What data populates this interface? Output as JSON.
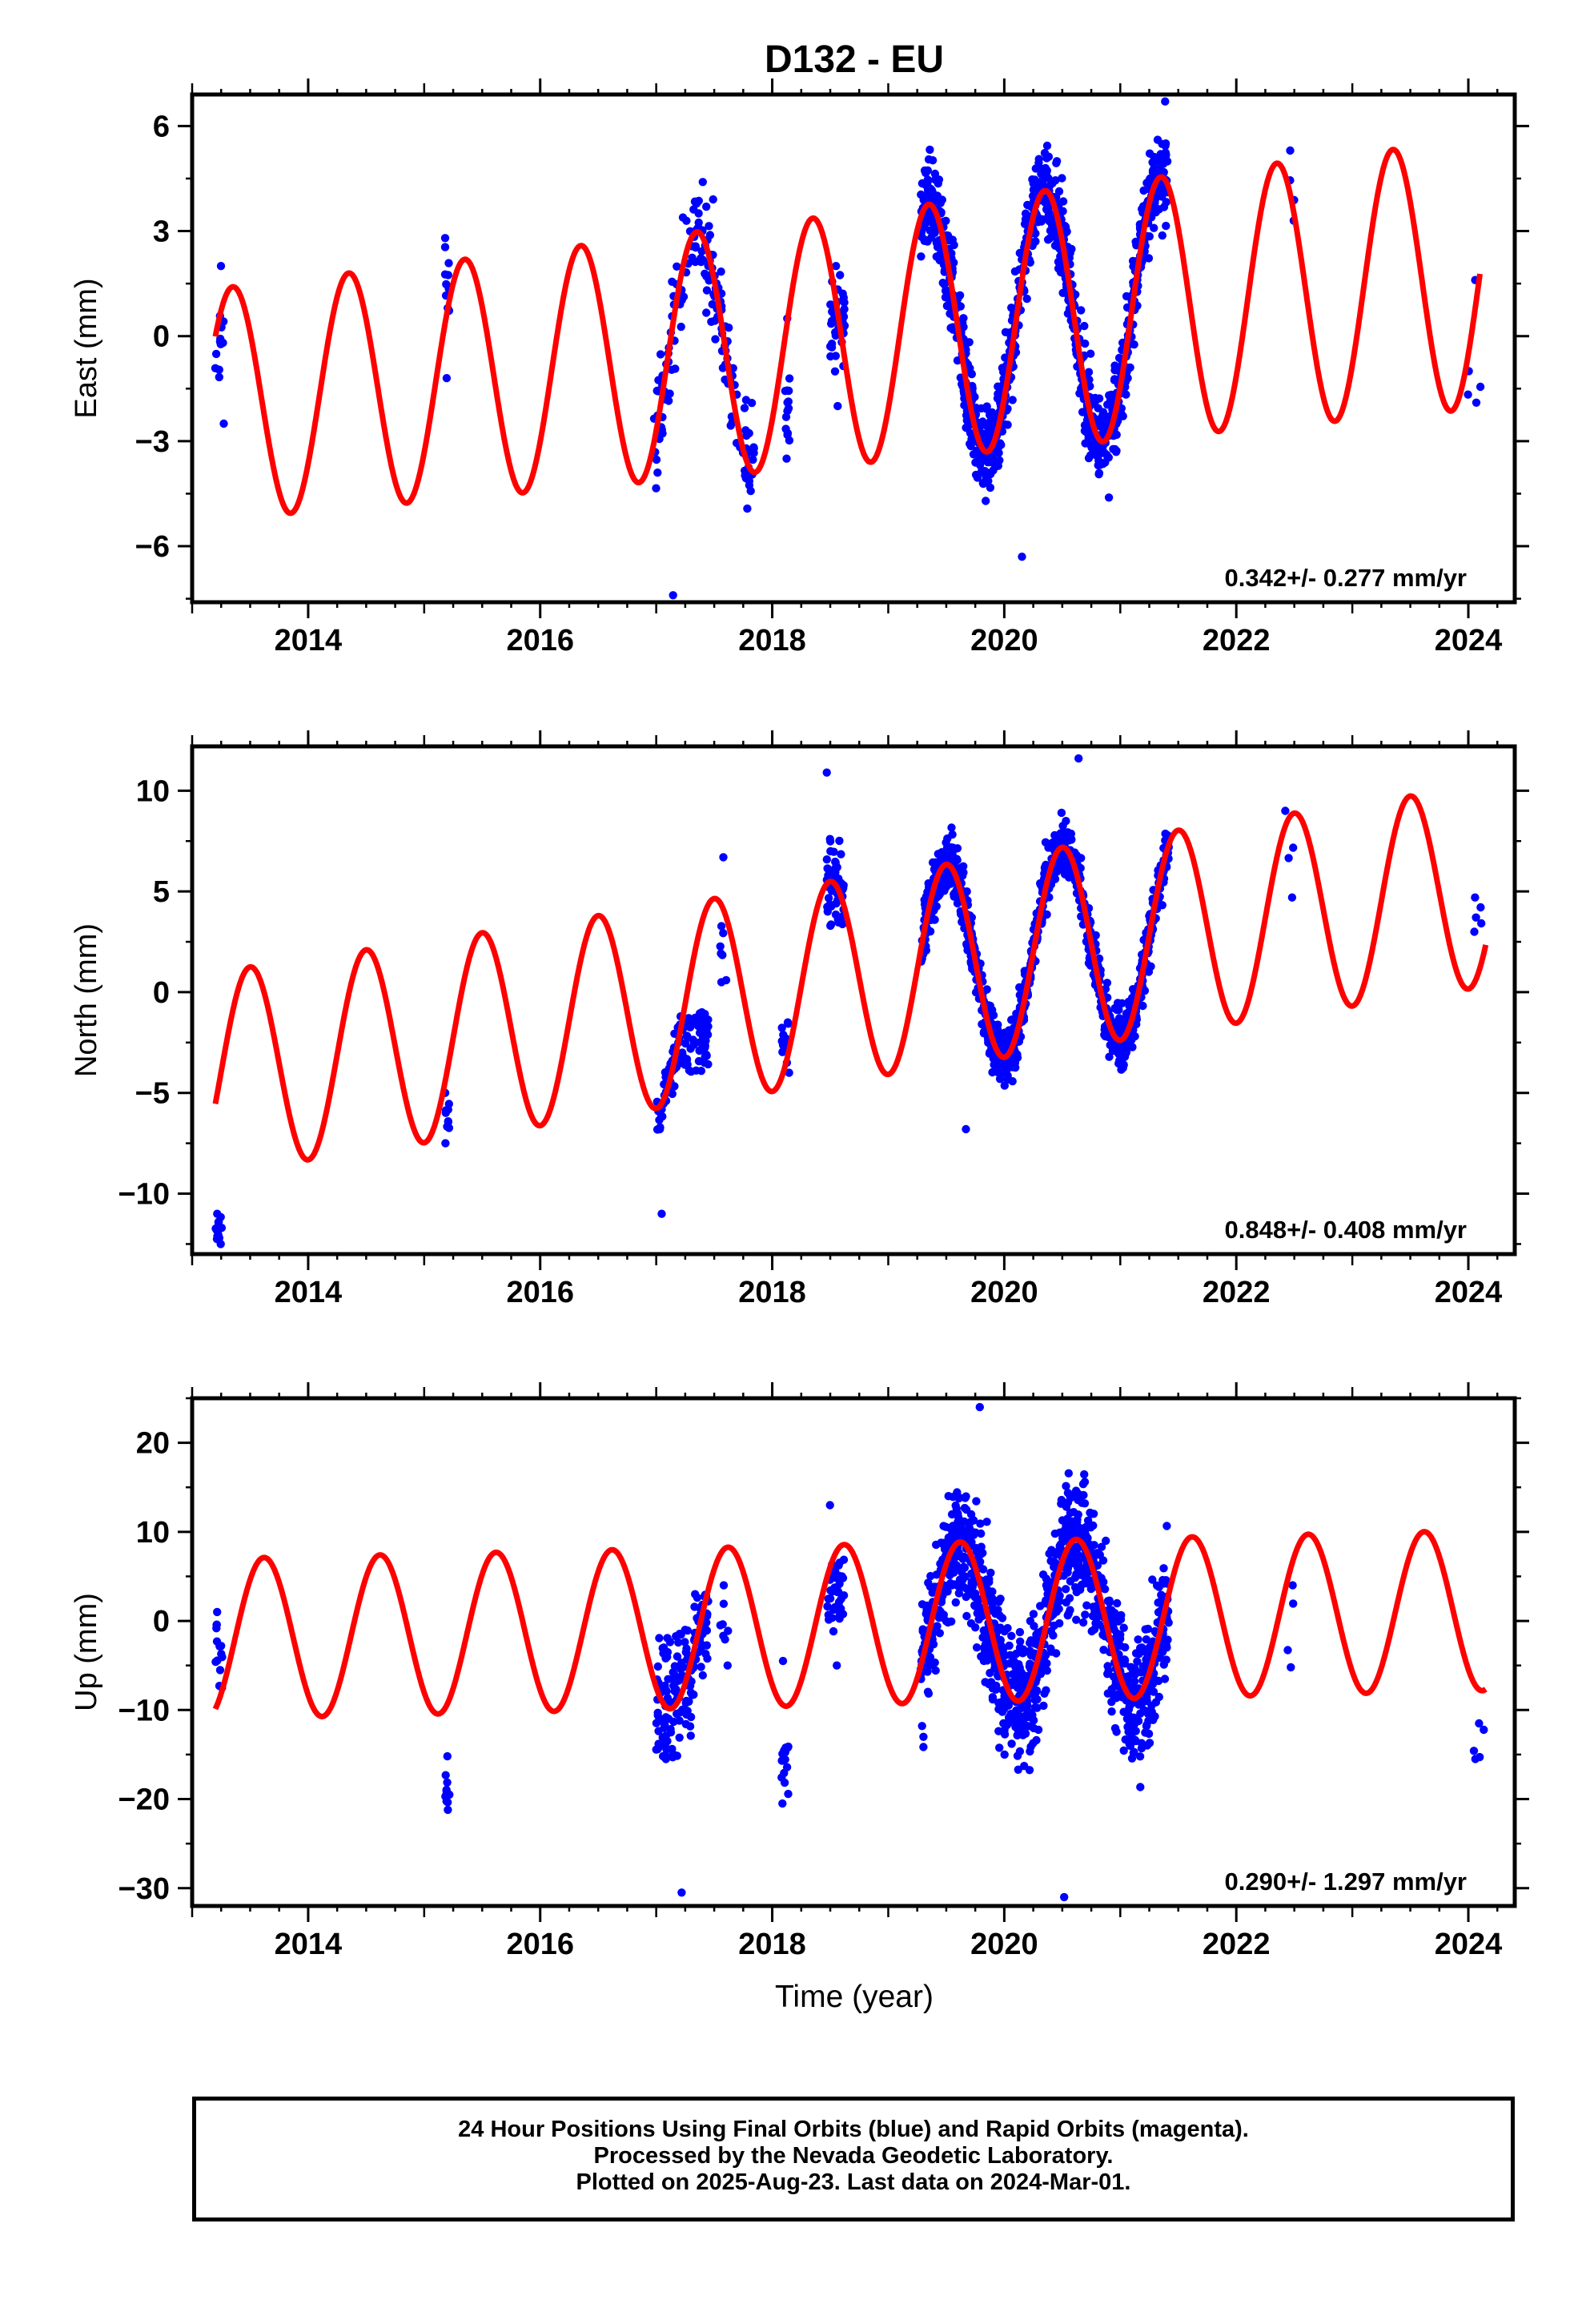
{
  "figure_title": "D132 - EU",
  "xlabel": "Time (year)",
  "footer": {
    "line1": "24 Hour Positions Using Final Orbits (blue) and Rapid Orbits (magenta).",
    "line2": "Processed by the Nevada Geodetic Laboratory.",
    "line3": "Plotted on 2025-Aug-23. Last data on 2024-Mar-01."
  },
  "colors": {
    "points": "#0000ff",
    "model": "#ff0000",
    "axes": "#000000"
  },
  "chart_data": [
    {
      "type": "scatter",
      "ylabel": "East (mm)",
      "rate_text": "0.342+/- 0.277 mm/yr",
      "xlim": [
        2013.0,
        2024.4
      ],
      "ylim": [
        -7.6,
        6.9
      ],
      "x_ticks": [
        2014,
        2016,
        2018,
        2020,
        2022,
        2024
      ],
      "y_ticks": [
        -6,
        -3,
        0,
        3,
        6
      ],
      "model": {
        "name": "seasonal fit",
        "offset": -1.95,
        "rate": 0.342,
        "amp": 3.3,
        "amp_slope": 0.05,
        "phase_peak": 0.35,
        "t0": 2013.2,
        "t1": 2024.1
      },
      "clusters": [
        {
          "t0": 2013.2,
          "t1": 2013.28,
          "n": 12,
          "mean": -0.3,
          "scatter": 1.2,
          "follow": 0.0,
          "lo": -2.5,
          "hi": 2.0
        },
        {
          "t0": 2015.18,
          "t1": 2015.22,
          "n": 10,
          "mean": 1.3,
          "scatter": 1.0,
          "follow": 0.0,
          "lo": -1.2,
          "hi": 2.8
        },
        {
          "t0": 2016.98,
          "t1": 2017.85,
          "n": 160,
          "mean": 0,
          "scatter": 1.1,
          "follow": 1.0,
          "lo": -7.4,
          "hi": 4.4
        },
        {
          "t0": 2018.1,
          "t1": 2018.15,
          "n": 14,
          "mean": -2.0,
          "scatter": 1.0,
          "follow": 0.0,
          "lo": -3.5,
          "hi": 0.5
        },
        {
          "t0": 2018.5,
          "t1": 2018.63,
          "n": 45,
          "mean": 0.4,
          "scatter": 0.9,
          "follow": 0.0,
          "lo": -2.0,
          "hi": 2.0
        },
        {
          "t0": 2019.28,
          "t1": 2021.42,
          "n": 1100,
          "mean": 0,
          "scatter": 0.9,
          "follow": 1.0,
          "lo": -6.3,
          "hi": 6.7
        },
        {
          "t0": 2022.42,
          "t1": 2022.5,
          "n": 2,
          "mean": 4.3,
          "scatter": 1.0,
          "follow": 0.0,
          "lo": 3.3,
          "hi": 5.3
        },
        {
          "t0": 2023.98,
          "t1": 2024.13,
          "n": 3,
          "mean": -1.0,
          "scatter": 1.0,
          "follow": 0.0,
          "lo": -1.9,
          "hi": 1.6
        }
      ]
    },
    {
      "type": "scatter",
      "ylabel": "North (mm)",
      "rate_text": "0.848+/- 0.408 mm/yr",
      "xlim": [
        2013.0,
        2024.4
      ],
      "ylim": [
        -13.0,
        12.2
      ],
      "x_ticks": [
        2014,
        2016,
        2018,
        2020,
        2022,
        2024
      ],
      "y_ticks": [
        -10,
        -5,
        0,
        5,
        10
      ],
      "model": {
        "name": "seasonal fit",
        "offset": -4.0,
        "rate": 0.848,
        "amp": 5.0,
        "amp_slope": 0.0,
        "phase_peak": 0.5,
        "t0": 2013.2,
        "t1": 2024.15
      },
      "clusters": [
        {
          "t0": 2013.2,
          "t1": 2013.26,
          "n": 12,
          "mean": -11.8,
          "scatter": 0.5,
          "follow": 0.0,
          "lo": -12.5,
          "hi": -11.0
        },
        {
          "t0": 2015.18,
          "t1": 2015.22,
          "n": 8,
          "mean": -6.2,
          "scatter": 0.8,
          "follow": 0.0,
          "lo": -7.5,
          "hi": -5.0
        },
        {
          "t0": 2017.0,
          "t1": 2017.45,
          "n": 110,
          "mean": 0,
          "scatter": 1.0,
          "follow": 1.0,
          "lo": -11.0,
          "hi": -1.0
        },
        {
          "t0": 2017.55,
          "t1": 2017.62,
          "n": 6,
          "mean": 2.3,
          "scatter": 1.2,
          "follow": 0.0,
          "lo": 0.5,
          "hi": 6.7
        },
        {
          "t0": 2018.08,
          "t1": 2018.15,
          "n": 14,
          "mean": -2.8,
          "scatter": 0.8,
          "follow": 0.0,
          "lo": -4.0,
          "hi": -1.5
        },
        {
          "t0": 2018.47,
          "t1": 2018.62,
          "n": 55,
          "mean": 0,
          "scatter": 1.6,
          "follow": 1.0,
          "lo": 3.3,
          "hi": 10.9
        },
        {
          "t0": 2019.28,
          "t1": 2021.42,
          "n": 1100,
          "mean": 0,
          "scatter": 1.0,
          "follow": 1.0,
          "lo": -6.8,
          "hi": 11.6
        },
        {
          "t0": 2022.42,
          "t1": 2022.5,
          "n": 2,
          "mean": 7.0,
          "scatter": 1.0,
          "follow": 0.0,
          "lo": 4.7,
          "hi": 9.0
        },
        {
          "t0": 2024.0,
          "t1": 2024.15,
          "n": 3,
          "mean": 3.8,
          "scatter": 0.6,
          "follow": 0.0,
          "lo": 3.0,
          "hi": 4.7
        }
      ]
    },
    {
      "type": "scatter",
      "ylabel": "Up (mm)",
      "rate_text": "0.290+/- 1.297 mm/yr",
      "xlim": [
        2013.0,
        2024.4
      ],
      "ylim": [
        -32.0,
        25.0
      ],
      "x_ticks": [
        2014,
        2016,
        2018,
        2020,
        2022,
        2024
      ],
      "y_ticks": [
        -30,
        -20,
        -10,
        0,
        10,
        20
      ],
      "model": {
        "name": "seasonal fit",
        "offset": -2.0,
        "rate": 0.29,
        "amp": 9.0,
        "amp_slope": 0.0,
        "phase_peak": 0.62,
        "t0": 2013.2,
        "t1": 2024.15
      },
      "clusters": [
        {
          "t0": 2013.2,
          "t1": 2013.26,
          "n": 12,
          "mean": -3.5,
          "scatter": 2.5,
          "follow": 0.0,
          "lo": -7.5,
          "hi": 1.0
        },
        {
          "t0": 2015.18,
          "t1": 2015.22,
          "n": 9,
          "mean": -19.0,
          "scatter": 1.8,
          "follow": 0.0,
          "lo": -21.2,
          "hi": -15.2
        },
        {
          "t0": 2017.0,
          "t1": 2017.45,
          "n": 160,
          "mean": 0,
          "scatter": 5.5,
          "follow": 1.0,
          "lo": -30.5,
          "hi": 3.0
        },
        {
          "t0": 2017.55,
          "t1": 2017.62,
          "n": 6,
          "mean": -1.5,
          "scatter": 3.0,
          "follow": 0.0,
          "lo": -5.0,
          "hi": 4.0
        },
        {
          "t0": 2018.08,
          "t1": 2018.15,
          "n": 14,
          "mean": -15.0,
          "scatter": 4.0,
          "follow": 0.0,
          "lo": -20.5,
          "hi": -4.5
        },
        {
          "t0": 2018.47,
          "t1": 2018.62,
          "n": 45,
          "mean": 3.0,
          "scatter": 4.0,
          "follow": 0.0,
          "lo": -5.0,
          "hi": 13.0
        },
        {
          "t0": 2019.28,
          "t1": 2021.42,
          "n": 1100,
          "mean": 0,
          "scatter": 5.0,
          "follow": 1.0,
          "lo": -31.0,
          "hi": 24.0
        },
        {
          "t0": 2022.4,
          "t1": 2022.5,
          "n": 2,
          "mean": -1.0,
          "scatter": 3.0,
          "follow": 0.0,
          "lo": -5.2,
          "hi": 4.0
        },
        {
          "t0": 2024.0,
          "t1": 2024.15,
          "n": 3,
          "mean": -13.5,
          "scatter": 2.0,
          "follow": 0.0,
          "lo": -15.5,
          "hi": -11.5
        }
      ]
    }
  ]
}
